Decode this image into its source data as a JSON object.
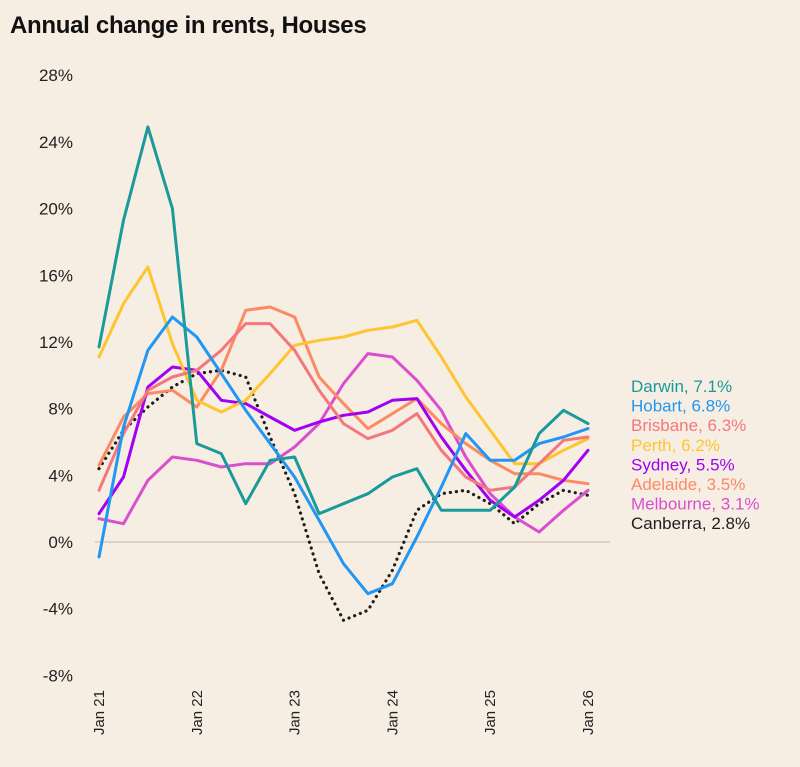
{
  "chart_data": {
    "type": "line",
    "title": "Annual change in rents, Houses",
    "xlabel": "",
    "ylabel": "",
    "ylim": [
      -8,
      28
    ],
    "yticks": [
      "28%",
      "24%",
      "20%",
      "16%",
      "12%",
      "8%",
      "4%",
      "0%",
      "-4%",
      "-8%"
    ],
    "ytick_values": [
      28,
      24,
      20,
      16,
      12,
      8,
      4,
      0,
      -4,
      -8
    ],
    "xticks": [
      "Jan 21",
      "Jan 22",
      "Jan 23",
      "Jan 24",
      "Jan 25",
      "Jan 26"
    ],
    "x": [
      "2021-01",
      "2021-04",
      "2021-07",
      "2021-10",
      "2022-01",
      "2022-04",
      "2022-07",
      "2022-10",
      "2023-01",
      "2023-04",
      "2023-07",
      "2023-10",
      "2024-01",
      "2024-04",
      "2024-07",
      "2024-10",
      "2025-01",
      "2025-04",
      "2025-07",
      "2025-10",
      "2026-01"
    ],
    "grid": "zero line only",
    "legend": "right, end-of-line labels",
    "series": [
      {
        "name": "Darwin",
        "label": "Darwin, 7.1%",
        "color": "#1a9a9a",
        "dash": false,
        "values": [
          11.7,
          19.3,
          24.9,
          20.0,
          5.9,
          5.3,
          2.3,
          4.9,
          5.1,
          1.7,
          2.3,
          2.9,
          3.9,
          4.4,
          1.9,
          1.9,
          1.9,
          3.3,
          6.5,
          7.9,
          7.1
        ]
      },
      {
        "name": "Hobart",
        "label": "Hobart, 6.8%",
        "color": "#2196f3",
        "dash": false,
        "values": [
          -0.9,
          6.9,
          11.5,
          13.5,
          12.3,
          10.1,
          7.9,
          5.9,
          3.9,
          1.3,
          -1.3,
          -3.1,
          -2.5,
          0.3,
          3.3,
          6.5,
          4.9,
          4.9,
          5.9,
          6.3,
          6.8
        ]
      },
      {
        "name": "Brisbane",
        "label": "Brisbane, 6.3%",
        "color": "#f4777c",
        "dash": false,
        "values": [
          3.1,
          6.5,
          9.1,
          9.9,
          10.3,
          11.5,
          13.1,
          13.1,
          11.5,
          9.1,
          7.1,
          6.2,
          6.7,
          7.7,
          5.5,
          3.9,
          3.1,
          3.3,
          4.7,
          6.1,
          6.3
        ]
      },
      {
        "name": "Perth",
        "label": "Perth, 6.2%",
        "color": "#ffc531",
        "dash": false,
        "values": [
          11.1,
          14.3,
          16.5,
          11.9,
          8.5,
          7.8,
          8.5,
          10.1,
          11.8,
          12.1,
          12.3,
          12.7,
          12.9,
          13.3,
          11.1,
          8.7,
          6.7,
          4.7,
          4.7,
          5.5,
          6.2
        ]
      },
      {
        "name": "Sydney",
        "label": "Sydney, 5.5%",
        "color": "#a100f2",
        "dash": false,
        "values": [
          1.7,
          3.9,
          9.3,
          10.5,
          10.3,
          8.5,
          8.3,
          7.5,
          6.7,
          7.2,
          7.6,
          7.8,
          8.5,
          8.6,
          6.3,
          4.3,
          2.5,
          1.5,
          2.5,
          3.7,
          5.5
        ]
      },
      {
        "name": "Adelaide",
        "label": "Adelaide, 3.5%",
        "color": "#fc8a63",
        "dash": false,
        "values": [
          4.6,
          7.5,
          8.9,
          9.1,
          8.1,
          10.3,
          13.9,
          14.1,
          13.5,
          9.9,
          8.3,
          6.8,
          7.7,
          8.6,
          7.1,
          5.9,
          4.9,
          4.1,
          4.1,
          3.7,
          3.5
        ]
      },
      {
        "name": "Melbourne",
        "label": "Melbourne, 3.1%",
        "color": "#d94fd0",
        "dash": false,
        "values": [
          1.4,
          1.1,
          3.7,
          5.1,
          4.9,
          4.5,
          4.7,
          4.7,
          5.7,
          7.1,
          9.5,
          11.3,
          11.1,
          9.7,
          7.9,
          5.1,
          2.9,
          1.5,
          0.6,
          1.9,
          3.1
        ]
      },
      {
        "name": "Canberra",
        "label": "Canberra, 2.8%",
        "color": "#1e1e1e",
        "dash": true,
        "values": [
          4.4,
          6.7,
          8.1,
          9.3,
          10.1,
          10.3,
          9.9,
          6.3,
          2.9,
          -1.9,
          -4.7,
          -4.1,
          -1.7,
          1.9,
          2.9,
          3.1,
          2.3,
          1.1,
          2.3,
          3.1,
          2.8
        ]
      }
    ]
  }
}
